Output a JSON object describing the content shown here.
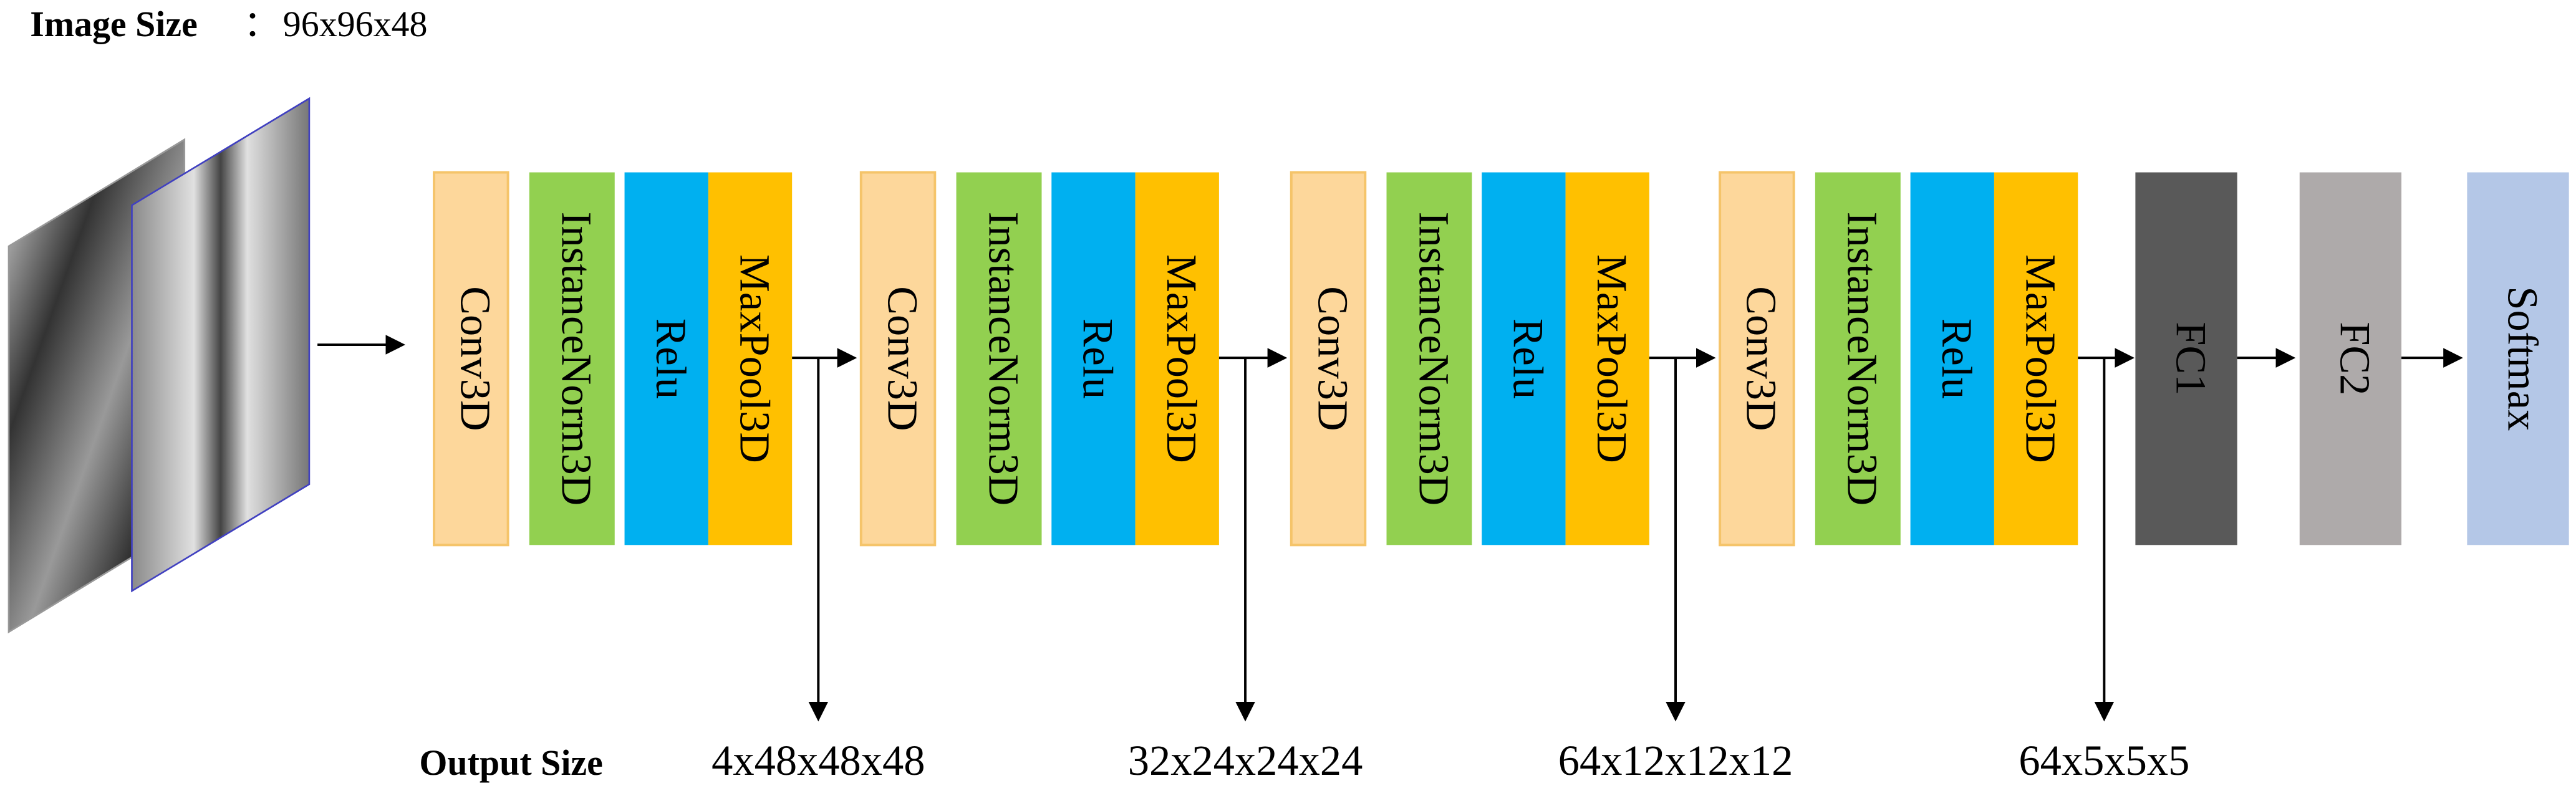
{
  "header": {
    "label": "Image Size",
    "separator": "：",
    "value": "96x96x48"
  },
  "groups": [
    {
      "layers": [
        "Conv3D",
        "InstanceNorm3D",
        "Relu",
        "MaxPool3D"
      ]
    },
    {
      "layers": [
        "Conv3D",
        "InstanceNorm3D",
        "Relu",
        "MaxPool3D"
      ]
    },
    {
      "layers": [
        "Conv3D",
        "InstanceNorm3D",
        "Relu",
        "MaxPool3D"
      ]
    },
    {
      "layers": [
        "Conv3D",
        "InstanceNorm3D",
        "Relu",
        "MaxPool3D"
      ]
    }
  ],
  "head": [
    "FC1",
    "FC2",
    "Softmax"
  ],
  "output": {
    "label": "Output Size",
    "sizes": [
      "4x48x48x48",
      "32x24x24x24",
      "64x12x12x12",
      "64x5x5x5"
    ]
  }
}
